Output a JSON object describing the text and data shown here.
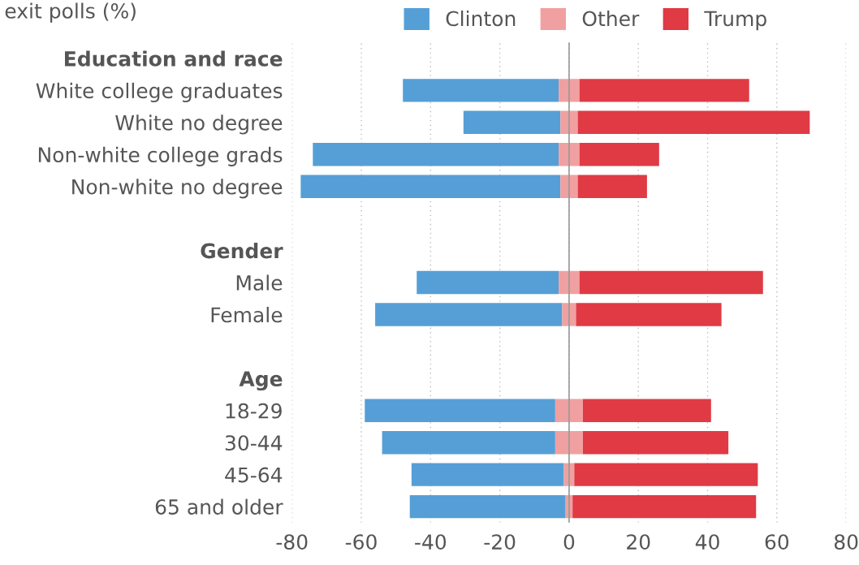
{
  "chart_data": {
    "type": "bar",
    "orientation": "horizontal",
    "title": "exit polls (%)",
    "categories": [
      "Education and race",
      "White college graduates",
      "White no degree",
      "Non-white college grads",
      "Non-white no degree",
      null,
      "Gender",
      "Male",
      "Female",
      null,
      "Age",
      "18-29",
      "30-44",
      "45-64",
      "65 and older"
    ],
    "series": [
      {
        "name": "Clinton",
        "color": "#559fd6",
        "base": [
          null,
          -3,
          -2.5,
          -3,
          -2.5,
          null,
          null,
          -3,
          -2,
          null,
          null,
          -4,
          -4,
          -1.5,
          -1
        ],
        "values": [
          null,
          -45,
          -28,
          -71,
          -75,
          null,
          null,
          -41,
          -54,
          null,
          null,
          -55,
          -50,
          -44,
          -45
        ]
      },
      {
        "name": "Other",
        "color": "#f0a0a0",
        "base": [
          null,
          -3,
          -2.5,
          -3,
          -2.5,
          null,
          null,
          -3,
          -2,
          null,
          null,
          -4,
          -4,
          -1.5,
          -1
        ],
        "values": [
          null,
          6,
          5,
          6,
          5,
          null,
          null,
          6,
          4,
          null,
          null,
          8,
          8,
          3,
          2
        ]
      },
      {
        "name": "Trump",
        "color": "#e03a45",
        "base": [
          null,
          3,
          2.5,
          3,
          2.5,
          null,
          null,
          3,
          2,
          null,
          null,
          4,
          4,
          1.5,
          1
        ],
        "values": [
          null,
          49,
          67,
          23,
          20,
          null,
          null,
          53,
          42,
          null,
          null,
          37,
          42,
          53,
          53
        ]
      }
    ],
    "xlim": [
      -80,
      80
    ],
    "xticks": [
      -80,
      -60,
      -40,
      -20,
      0,
      20,
      40,
      60,
      80
    ],
    "ref_lines": [
      {
        "axis": "x",
        "value": 0,
        "color": "#999999"
      }
    ],
    "grid": "x",
    "legend": "top right"
  }
}
